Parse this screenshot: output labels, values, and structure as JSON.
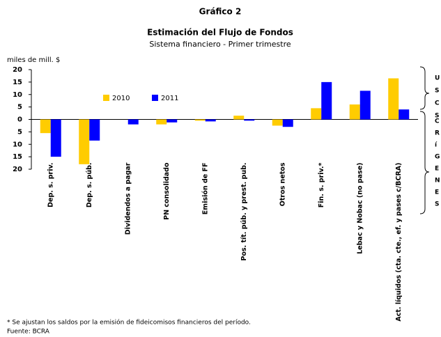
{
  "chart_data": {
    "type": "bar",
    "heading": "Gráfico 2",
    "title": "Estimación del Flujo de Fondos",
    "subtitle": "Sistema financiero - Primer trimestre",
    "y_label": "miles de mill. $",
    "categories": [
      "Dep. s. priv.",
      "Dep. s. púb.",
      "Dividendos a pagar",
      "PN consolidado",
      "Emisión de FF",
      "Pos. tít. púb. y prest. pub.",
      "Otros netos",
      "Fin. s. priv.*",
      "Lebac y Nobac (no pase)",
      "Act. líquidos (cta. cte., ef. y pases c/BCRA)"
    ],
    "series": [
      {
        "name": "2010",
        "color": "#ffcc00",
        "values": [
          -5.5,
          -18,
          0,
          -2,
          -0.5,
          1.5,
          -2.5,
          4.5,
          6,
          16.5
        ]
      },
      {
        "name": "2011",
        "color": "#0000ff",
        "values": [
          -15,
          -8.5,
          -2,
          -1.2,
          -0.8,
          -0.5,
          -3,
          15,
          11.5,
          4
        ]
      }
    ],
    "ylim": [
      -20,
      20
    ],
    "yticks": [
      20,
      15,
      10,
      5,
      0,
      {
        "value": -5,
        "label": "5"
      },
      {
        "value": -10,
        "label": "10"
      },
      {
        "value": -15,
        "label": "15"
      },
      {
        "value": -20,
        "label": "20"
      }
    ],
    "footnote": "* Se ajustan los saldos por la emisión de fideicomisos financieros del período.",
    "source": "Fuente: BCRA",
    "side_fragments": [
      "U",
      "S",
      "C",
      "S",
      "C",
      "R",
      "í",
      "G",
      "E",
      "N",
      "E",
      "S"
    ]
  }
}
